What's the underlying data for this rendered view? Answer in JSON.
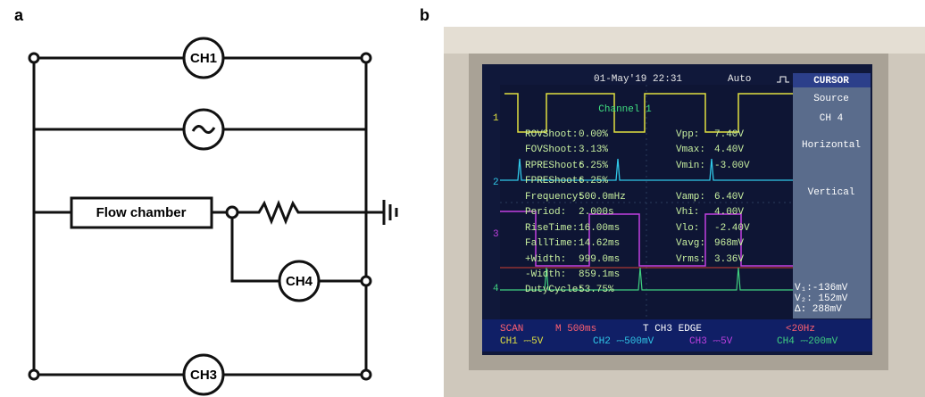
{
  "panel_labels": {
    "a": "a",
    "b": "b"
  },
  "circuit": {
    "ch1": "CH1",
    "flow_chamber": "Flow chamber",
    "ch4": "CH4",
    "ch3": "CH3"
  },
  "scope": {
    "header": {
      "datetime": "01-May'19 22:31",
      "mode": "Auto",
      "menu_title": "CURSOR"
    },
    "menu": {
      "source": "Source",
      "source_value": "CH 4",
      "horizontal": "Horizontal",
      "vertical": "Vertical"
    },
    "cursor_readout": [
      "V₁:-136mV",
      "V₂: 152mV",
      "Δ: 288mV"
    ],
    "channel_title": "Channel 1",
    "channel_markers": [
      "1",
      "2",
      "3",
      "4"
    ],
    "measurements": [
      [
        "ROVShoot:",
        "0.00%",
        "Vpp:",
        "7.40V"
      ],
      [
        "FOVShoot:",
        "3.13%",
        "Vmax:",
        "4.40V"
      ],
      [
        "RPREShoot:",
        "6.25%",
        "Vmin:",
        "-3.00V"
      ],
      [
        "FPREShoot:",
        "6.25%"
      ],
      [
        "Frequency:",
        "500.0mHz",
        "Vamp:",
        "6.40V"
      ],
      [
        "Period:",
        "2.000s",
        "Vhi:",
        "4.00V"
      ],
      [
        "RiseTime:",
        "16.00ms",
        "Vlo:",
        "-2.40V"
      ],
      [
        "FallTime:",
        "14.62ms",
        "Vavg:",
        "968mV"
      ],
      [
        "+Width:",
        "999.0ms",
        "Vrms:",
        "3.36V"
      ],
      [
        "-Width:",
        "859.1ms"
      ],
      [
        "DutyCycle:",
        "53.75%"
      ]
    ],
    "status": {
      "scan": "SCAN",
      "timebase": "M 500ms",
      "trigger": "T CH3 EDGE",
      "freq": "<20Hz"
    },
    "channels": [
      "CH1 ⎓5V",
      "CH2 ⎓500mV",
      "CH3 ⎓5V",
      "CH4 ⎓200mV"
    ]
  }
}
